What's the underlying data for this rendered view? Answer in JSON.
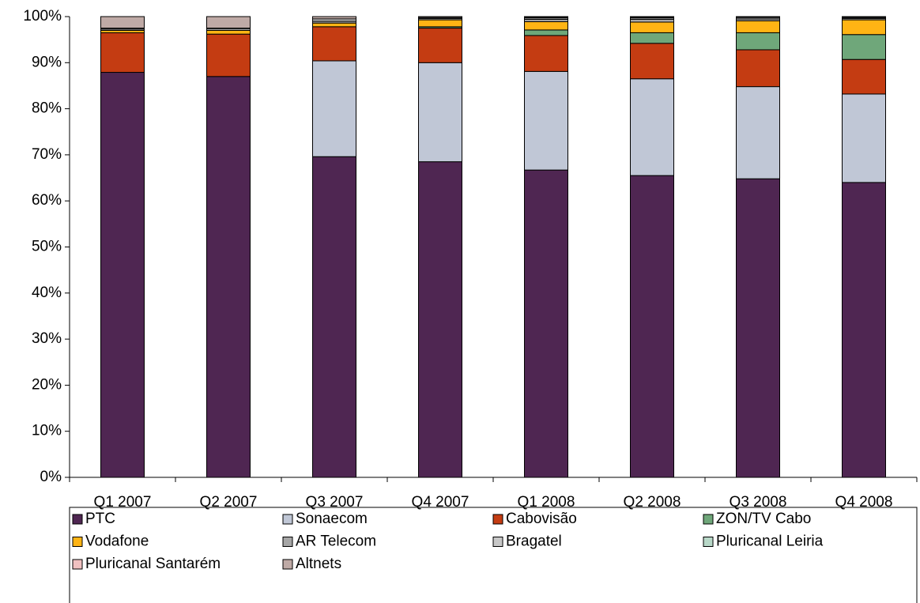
{
  "chart_data": {
    "type": "stacked_bar",
    "categories": [
      "Q1 2007",
      "Q2 2007",
      "Q3 2007",
      "Q4 2007",
      "Q1 2008",
      "Q2 2008",
      "Q3 2008",
      "Q4 2008"
    ],
    "series": [
      {
        "name": "PTC",
        "color": "#4f2652",
        "values": [
          87.9,
          87,
          69.6,
          68.5,
          66.7,
          65.5,
          64.8,
          64
        ]
      },
      {
        "name": "Sonaecom",
        "color": "#c0c7d6",
        "values": [
          0,
          0,
          20.8,
          21.5,
          21.4,
          21,
          20,
          19.2
        ]
      },
      {
        "name": "Cabovisão",
        "color": "#c43c12",
        "values": [
          8.6,
          9.2,
          7.4,
          7.5,
          7.8,
          7.7,
          8,
          7.5
        ]
      },
      {
        "name": "ZON/TV Cabo",
        "color": "#6fa77a",
        "values": [
          0,
          0,
          0,
          0.3,
          1.2,
          2.3,
          3.7,
          5.4
        ]
      },
      {
        "name": "Vodafone",
        "color": "#ffb414",
        "values": [
          0.5,
          0.8,
          0.8,
          1.5,
          1.8,
          2.3,
          2.6,
          3.2
        ]
      },
      {
        "name": "AR Telecom",
        "color": "#a6a6a6",
        "values": [
          0.3,
          0.4,
          0.4,
          0.3,
          0.5,
          0.6,
          0.4,
          0.3
        ]
      },
      {
        "name": "Bragatel",
        "color": "#c8c8c8",
        "values": [
          0.2,
          0.1,
          0.5,
          0.2,
          0.3,
          0.3,
          0.3,
          0.2
        ]
      },
      {
        "name": "Pluricanal Leiria",
        "color": "#b8d8c8",
        "values": [
          0,
          0,
          0,
          0,
          0.1,
          0.1,
          0.1,
          0.1
        ]
      },
      {
        "name": "Pluricanal Santarém",
        "color": "#f0c0c0",
        "values": [
          0,
          0,
          0,
          0,
          0.1,
          0.1,
          0.05,
          0.05
        ]
      },
      {
        "name": "Altnets",
        "color": "#bfaaa6",
        "values": [
          2.5,
          2.5,
          0.5,
          0.2,
          0.1,
          0.1,
          0.05,
          0.05
        ]
      }
    ],
    "ylim": [
      0,
      100
    ],
    "yticks": [
      {
        "value": 0,
        "label": "0%"
      },
      {
        "value": 10,
        "label": "10%"
      },
      {
        "value": 20,
        "label": "20%"
      },
      {
        "value": 30,
        "label": "30%"
      },
      {
        "value": 40,
        "label": "40%"
      },
      {
        "value": 50,
        "label": "50%"
      },
      {
        "value": 60,
        "label": "60%"
      },
      {
        "value": 70,
        "label": "70%"
      },
      {
        "value": 80,
        "label": "80%"
      },
      {
        "value": 90,
        "label": "90%"
      },
      {
        "value": 100,
        "label": "100%"
      }
    ],
    "grid": false,
    "legend": "bottom"
  }
}
